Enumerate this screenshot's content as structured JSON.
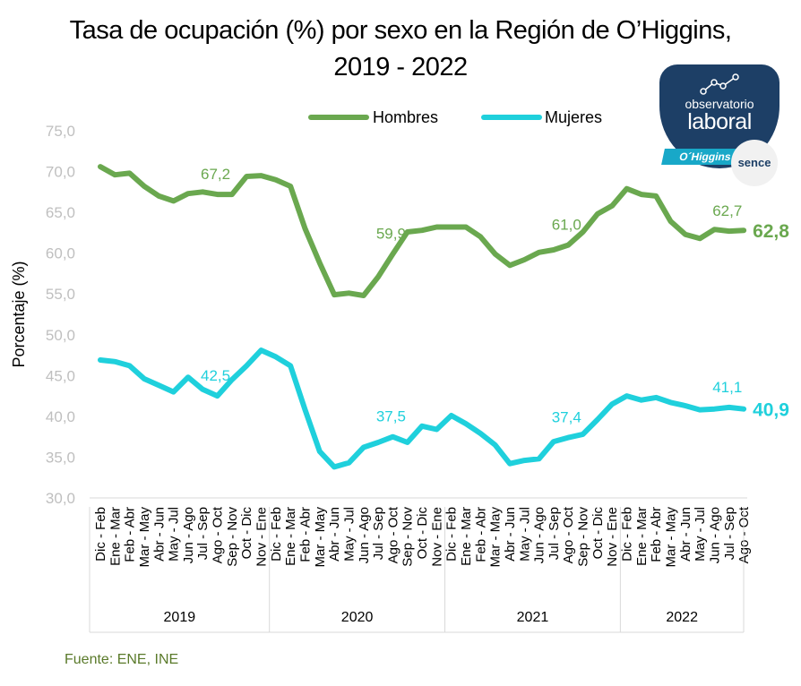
{
  "title_line1": "Tasa de ocupación (%) por sexo en la Región de O’Higgins,",
  "title_line2": "2019 - 2022",
  "source": "Fuente: ENE, INE",
  "logo": {
    "line1": "observatorio",
    "line2": "laboral",
    "region": "O´Higgins",
    "brand": "sence"
  },
  "colors": {
    "hombres": "#6aa84f",
    "mujeres": "#1fd0dc",
    "axis_text": "#bfbfbf",
    "grid": "#d9d9d9"
  },
  "chart_data": {
    "type": "line",
    "ylabel": "Porcentaje (%)",
    "ylim": [
      30,
      75
    ],
    "yticks": [
      "30,0",
      "35,0",
      "40,0",
      "45,0",
      "50,0",
      "55,0",
      "60,0",
      "65,0",
      "70,0",
      "75,0"
    ],
    "legend_position": "top",
    "categories": [
      "Dic - Feb",
      "Ene - Mar",
      "Feb - Abr",
      "Mar - May",
      "Abr - Jun",
      "May - Jul",
      "Jun - Ago",
      "Jul - Sep",
      "Ago - Oct",
      "Sep - Nov",
      "Oct - Dic",
      "Nov - Ene",
      "Dic - Feb",
      "Ene - Mar",
      "Feb - Abr",
      "Mar - May",
      "Abr - Jun",
      "May - Jul",
      "Jun - Ago",
      "Jul - Sep",
      "Ago - Oct",
      "Sep - Nov",
      "Oct - Dic",
      "Nov - Ene",
      "Dic - Feb",
      "Ene - Mar",
      "Feb - Abr",
      "Mar - May",
      "Abr - Jun",
      "May - Jul",
      "Jun - Ago",
      "Jul - Sep",
      "Ago - Oct",
      "Sep - Nov",
      "Oct - Dic",
      "Nov - Ene",
      "Dic - Feb",
      "Ene - Mar",
      "Feb - Abr",
      "Mar - May",
      "Abr - Jun",
      "May - Jul",
      "Jun - Ago",
      "Jul - Sep",
      "Ago - Oct"
    ],
    "groups": [
      {
        "label": "2019",
        "count": 12
      },
      {
        "label": "2020",
        "count": 12
      },
      {
        "label": "2021",
        "count": 12
      },
      {
        "label": "2022",
        "count": 9
      }
    ],
    "series": [
      {
        "name": "Hombres",
        "color": "#6aa84f",
        "values": [
          70.6,
          69.6,
          69.8,
          68.2,
          67.0,
          66.4,
          67.3,
          67.5,
          67.2,
          67.2,
          69.4,
          69.5,
          69.0,
          68.2,
          63.0,
          58.8,
          54.9,
          55.1,
          54.8,
          57.1,
          59.9,
          62.6,
          62.8,
          63.2,
          63.2,
          63.2,
          62.0,
          59.9,
          58.5,
          59.2,
          60.1,
          60.4,
          61.0,
          62.6,
          64.8,
          65.8,
          67.9,
          67.2,
          67.0,
          63.9,
          62.3,
          61.8,
          62.9,
          62.7,
          62.8
        ],
        "labels": [
          {
            "index": 8,
            "text": "67,2"
          },
          {
            "index": 20,
            "text": "59,9"
          },
          {
            "index": 32,
            "text": "61,0"
          },
          {
            "index": 43,
            "text": "62,7"
          }
        ],
        "end_label": "62,8"
      },
      {
        "name": "Mujeres",
        "color": "#1fd0dc",
        "values": [
          46.9,
          46.7,
          46.2,
          44.6,
          43.8,
          43.0,
          44.8,
          43.3,
          42.5,
          44.5,
          46.2,
          48.1,
          47.3,
          46.2,
          40.8,
          35.7,
          33.8,
          34.3,
          36.2,
          36.8,
          37.5,
          36.8,
          38.8,
          38.4,
          40.1,
          39.1,
          37.9,
          36.5,
          34.2,
          34.6,
          34.8,
          36.9,
          37.4,
          37.8,
          39.6,
          41.5,
          42.5,
          42.0,
          42.3,
          41.7,
          41.3,
          40.8,
          40.9,
          41.1,
          40.9
        ],
        "labels": [
          {
            "index": 8,
            "text": "42,5"
          },
          {
            "index": 20,
            "text": "37,5"
          },
          {
            "index": 32,
            "text": "37,4"
          },
          {
            "index": 43,
            "text": "41,1"
          }
        ],
        "end_label": "40,9"
      }
    ]
  }
}
